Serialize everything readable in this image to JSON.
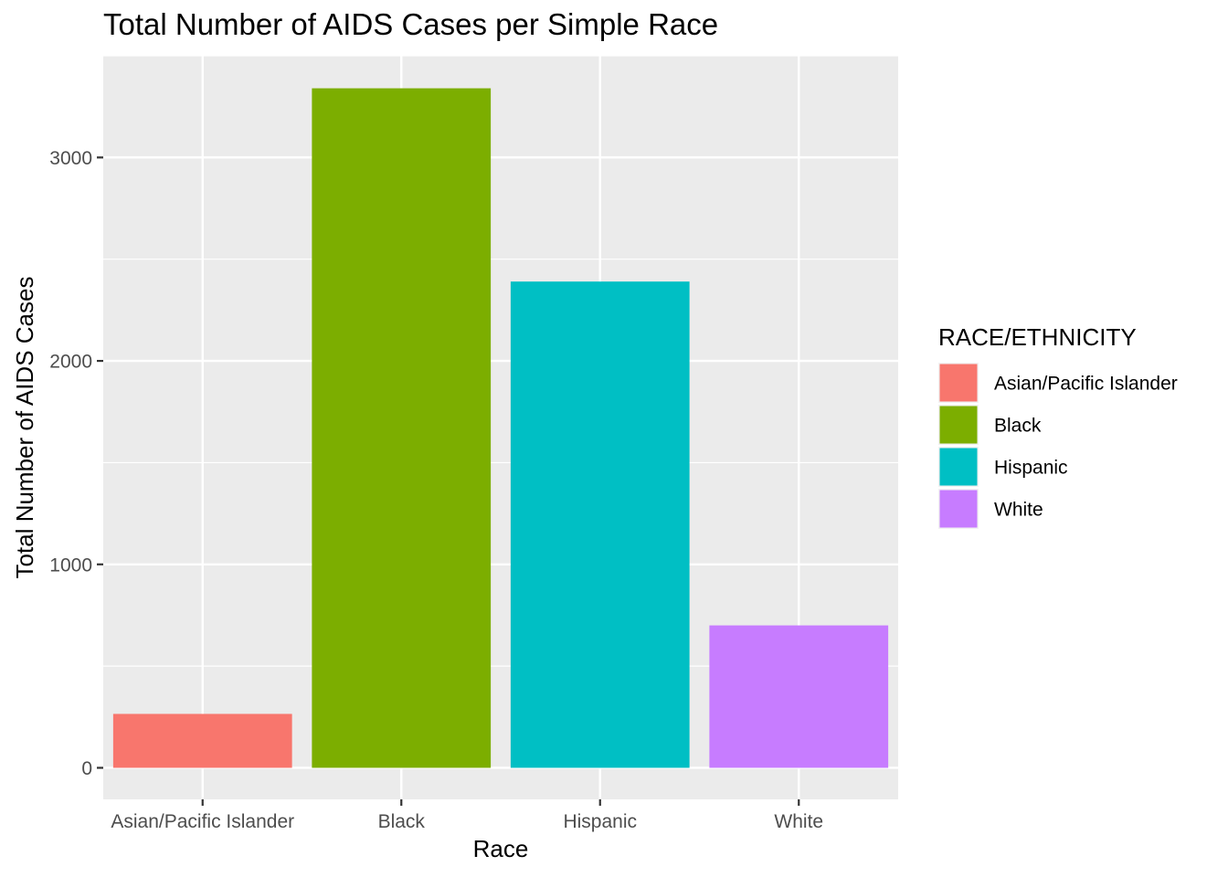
{
  "chart_data": {
    "type": "bar",
    "title": "Total Number of AIDS Cases per Simple Race",
    "xlabel": "Race",
    "ylabel": "Total Number of AIDS Cases",
    "categories": [
      "Asian/Pacific Islander",
      "Black",
      "Hispanic",
      "White"
    ],
    "values": [
      265,
      3340,
      2390,
      700
    ],
    "colors": [
      "#F8766D",
      "#7CAE00",
      "#00BFC4",
      "#C77CFF"
    ],
    "ylim": [
      -155,
      3500
    ],
    "yticks": [
      0,
      1000,
      2000,
      3000
    ],
    "grid": true,
    "background": "#EBEBEB",
    "legend": {
      "title": "RACE/ETHNICITY",
      "position": "right",
      "entries": [
        "Asian/Pacific Islander",
        "Black",
        "Hispanic",
        "White"
      ]
    }
  }
}
